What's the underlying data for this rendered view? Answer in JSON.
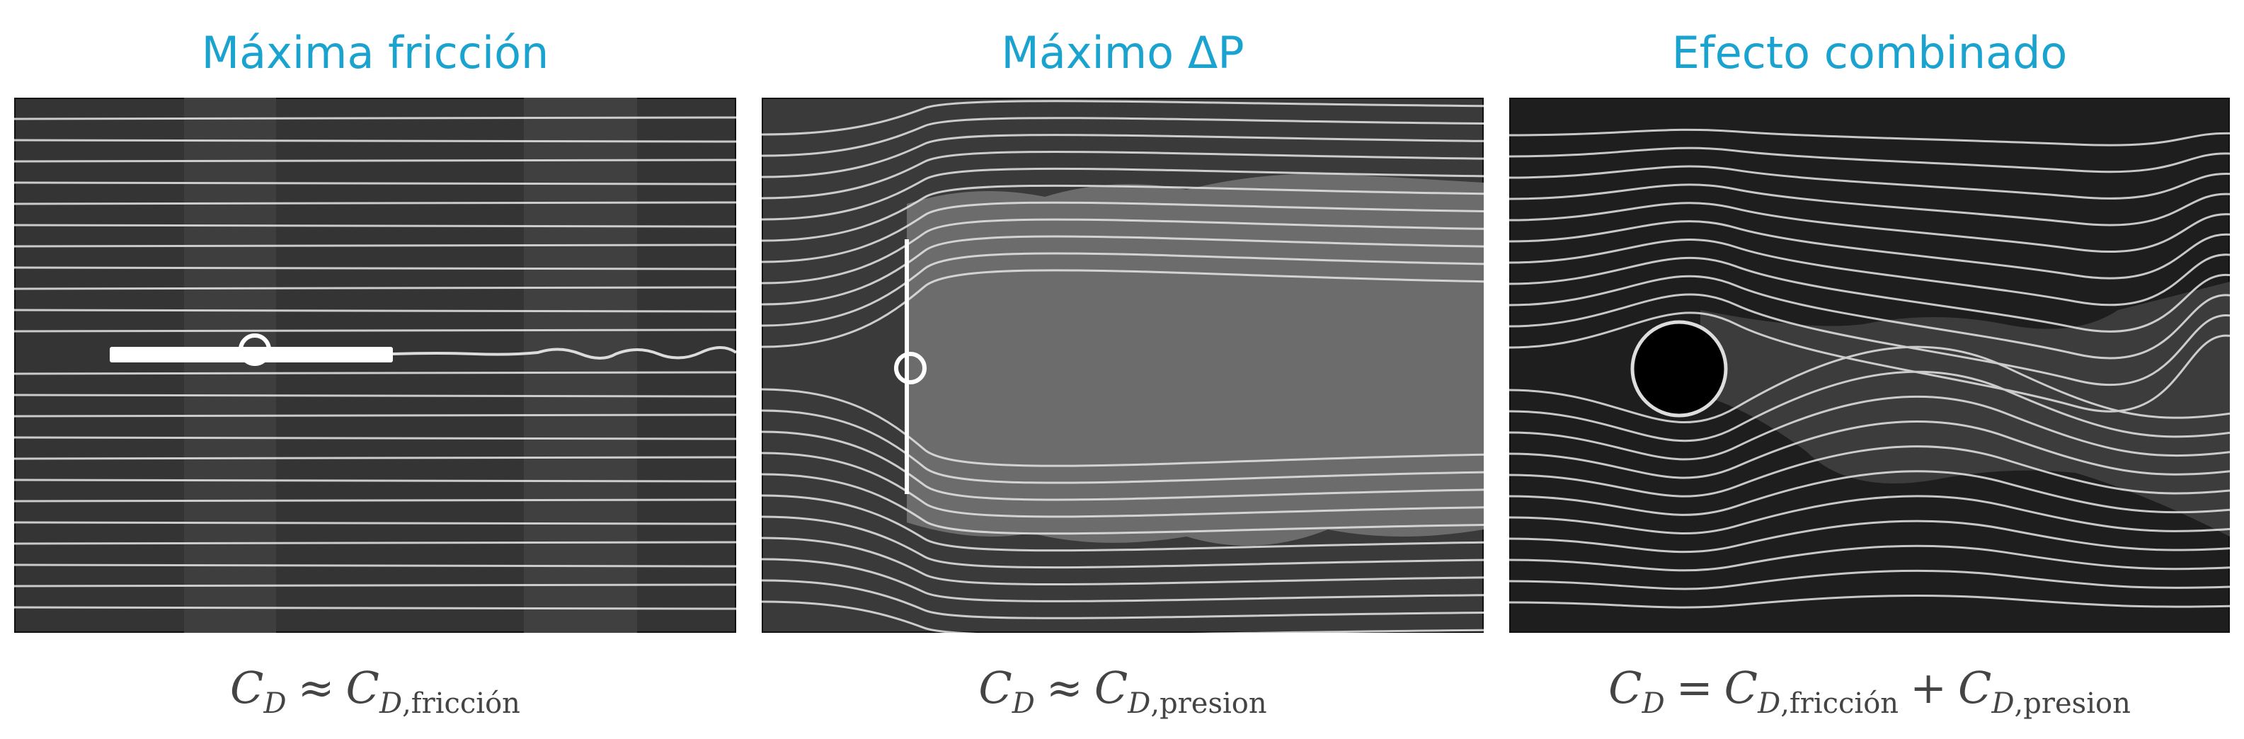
{
  "panels": [
    {
      "title": "Máxima fricción",
      "formula": {
        "lhs": "C",
        "lhs_sub": "D",
        "op1": "≈",
        "t1": "C",
        "t1_sub": "D,fricción"
      }
    },
    {
      "title": "Máximo ΔP",
      "formula": {
        "lhs": "C",
        "lhs_sub": "D",
        "op1": "≈",
        "t1": "C",
        "t1_sub": "D,presion"
      }
    },
    {
      "title": "Efecto combinado",
      "formula": {
        "lhs": "C",
        "lhs_sub": "D",
        "op1": "=",
        "t1": "C",
        "t1_sub": "D,fricción",
        "op2": "+",
        "t2": "C",
        "t2_sub": "D,presion"
      }
    }
  ],
  "colors": {
    "title": "#1aa3cf",
    "formula": "#444444",
    "photo_background": "#3a3a3a",
    "streamline": "#e8e8e8"
  }
}
